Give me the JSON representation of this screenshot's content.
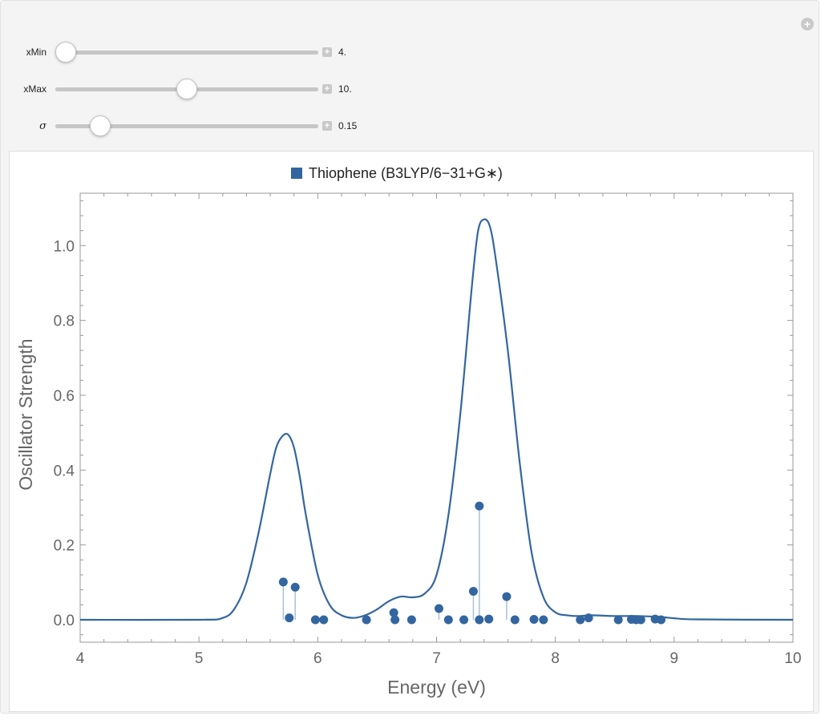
{
  "controls": {
    "xmin": {
      "label": "xMin",
      "value": "4.",
      "fraction": 0.041
    },
    "xmax": {
      "label": "xMax",
      "value": "10.",
      "fraction": 0.5
    },
    "sigma": {
      "label": "σ",
      "value": "0.15",
      "fraction": 0.17
    }
  },
  "chart_data": {
    "type": "line",
    "legend": "Thiophene (B3LYP/6−31+G∗)",
    "legend_placement": "top-center",
    "xlabel": "Energy (eV)",
    "ylabel": "Oscillator Strength",
    "xlim": [
      4,
      10
    ],
    "ylim": [
      -0.06,
      1.14
    ],
    "x_ticks": [
      "4",
      "5",
      "6",
      "7",
      "8",
      "9",
      "10"
    ],
    "y_ticks": [
      "0.0",
      "0.2",
      "0.4",
      "0.6",
      "0.8",
      "1.0"
    ],
    "color": "#3366a0",
    "sigma": 0.15,
    "transitions": [
      {
        "energy": 5.71,
        "strength": 0.101
      },
      {
        "energy": 5.76,
        "strength": 0.005
      },
      {
        "energy": 5.81,
        "strength": 0.087
      },
      {
        "energy": 5.98,
        "strength": 0.0
      },
      {
        "energy": 6.05,
        "strength": 0.0
      },
      {
        "energy": 6.41,
        "strength": 0.0
      },
      {
        "energy": 6.64,
        "strength": 0.019
      },
      {
        "energy": 6.65,
        "strength": 0.0
      },
      {
        "energy": 6.79,
        "strength": 0.0
      },
      {
        "energy": 7.02,
        "strength": 0.03
      },
      {
        "energy": 7.1,
        "strength": 0.0
      },
      {
        "energy": 7.23,
        "strength": 0.0
      },
      {
        "energy": 7.31,
        "strength": 0.076
      },
      {
        "energy": 7.36,
        "strength": 0.304
      },
      {
        "energy": 7.36,
        "strength": 0.0
      },
      {
        "energy": 7.44,
        "strength": 0.002
      },
      {
        "energy": 7.59,
        "strength": 0.062
      },
      {
        "energy": 7.66,
        "strength": 0.0
      },
      {
        "energy": 7.82,
        "strength": 0.001
      },
      {
        "energy": 7.9,
        "strength": 0.0
      },
      {
        "energy": 8.21,
        "strength": 0.0
      },
      {
        "energy": 8.28,
        "strength": 0.005
      },
      {
        "energy": 8.53,
        "strength": 0.0
      },
      {
        "energy": 8.64,
        "strength": 0.001
      },
      {
        "energy": 8.68,
        "strength": 0.0
      },
      {
        "energy": 8.72,
        "strength": 0.0
      },
      {
        "energy": 8.84,
        "strength": 0.002
      },
      {
        "energy": 8.89,
        "strength": 0.0
      }
    ],
    "spectrum": {
      "x": [
        4.0,
        5.0,
        5.2,
        5.3,
        5.4,
        5.5,
        5.6,
        5.65,
        5.7,
        5.75,
        5.8,
        5.85,
        5.9,
        6.0,
        6.1,
        6.2,
        6.3,
        6.4,
        6.5,
        6.6,
        6.7,
        6.8,
        6.9,
        7.0,
        7.1,
        7.2,
        7.3,
        7.35,
        7.4,
        7.45,
        7.5,
        7.6,
        7.7,
        7.8,
        7.9,
        8.0,
        8.1,
        8.2,
        8.3,
        8.5,
        8.7,
        8.9,
        9.0,
        9.2,
        10.0
      ],
      "y": [
        0.0,
        0.0,
        0.005,
        0.03,
        0.1,
        0.23,
        0.39,
        0.46,
        0.49,
        0.495,
        0.46,
        0.38,
        0.28,
        0.12,
        0.04,
        0.012,
        0.005,
        0.012,
        0.028,
        0.05,
        0.062,
        0.06,
        0.07,
        0.12,
        0.28,
        0.55,
        0.9,
        1.04,
        1.07,
        1.05,
        0.96,
        0.72,
        0.42,
        0.18,
        0.06,
        0.02,
        0.012,
        0.01,
        0.012,
        0.01,
        0.01,
        0.007,
        0.004,
        0.001,
        0.0
      ]
    }
  }
}
